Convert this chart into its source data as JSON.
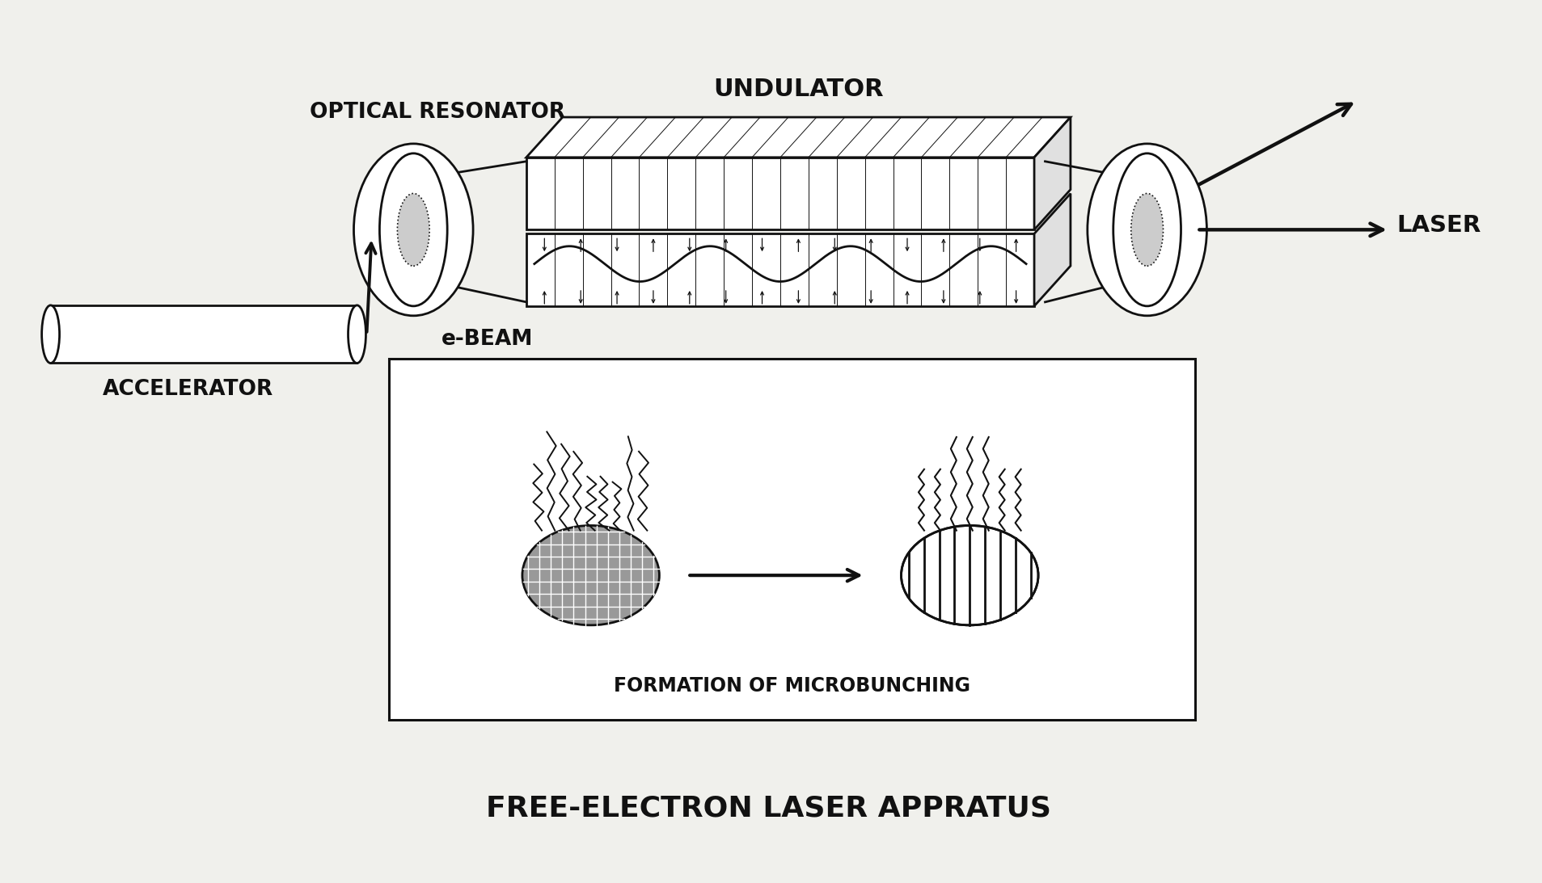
{
  "bg_color": "#f0f0ec",
  "title": "FREE-ELECTRON LASER APPRATUS",
  "title_fontsize": 26,
  "label_undulator": "UNDULATOR",
  "label_optical_resonator": "OPTICAL RESONATOR",
  "label_laser": "LASER",
  "label_ebeam": "e-BEAM",
  "label_accelerator": "ACCELERATOR",
  "label_microbunching": "FORMATION OF MICROBUNCHING",
  "line_color": "#111111",
  "fill_light": "#cccccc",
  "fill_dark": "#888888",
  "fill_white": "#ffffff",
  "fill_gray": "#aaaaaa"
}
